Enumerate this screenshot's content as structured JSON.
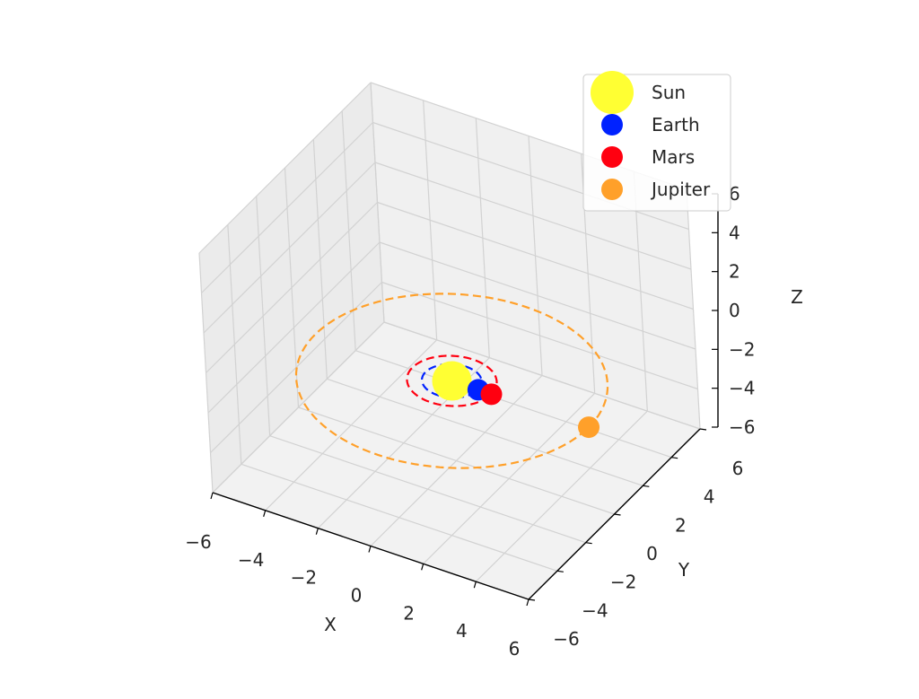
{
  "chart_data": {
    "type": "scatter",
    "subtype": "3d",
    "title": "",
    "xlabel": "X",
    "ylabel": "Y",
    "zlabel": "Z",
    "xlim": [
      -6,
      6
    ],
    "ylim": [
      -6,
      6
    ],
    "zlim": [
      -6,
      6
    ],
    "xticks": [
      "−6",
      "−4",
      "−2",
      "0",
      "2",
      "4",
      "6"
    ],
    "yticks": [
      "−6",
      "−4",
      "−2",
      "0",
      "2",
      "4",
      "6"
    ],
    "zticks": [
      "−6",
      "−4",
      "−2",
      "0",
      "2",
      "4",
      "6"
    ],
    "grid": true,
    "legend_position": "upper-right",
    "orbit_style": "dashed",
    "series": [
      {
        "name": "Sun",
        "color": "#ffff33",
        "x": 0,
        "y": 0,
        "z": -2,
        "orbit_radius": 0
      },
      {
        "name": "Earth",
        "color": "#0022ff",
        "x": 1,
        "y": 0,
        "z": -2,
        "orbit_radius": 1
      },
      {
        "name": "Mars",
        "color": "#ff0010",
        "x": 1.5,
        "y": 0,
        "z": -2,
        "orbit_radius": 1.5
      },
      {
        "name": "Jupiter",
        "color": "#ffa02a",
        "x": 5.2,
        "y": 0,
        "z": -2,
        "orbit_radius": 5.2
      }
    ]
  }
}
